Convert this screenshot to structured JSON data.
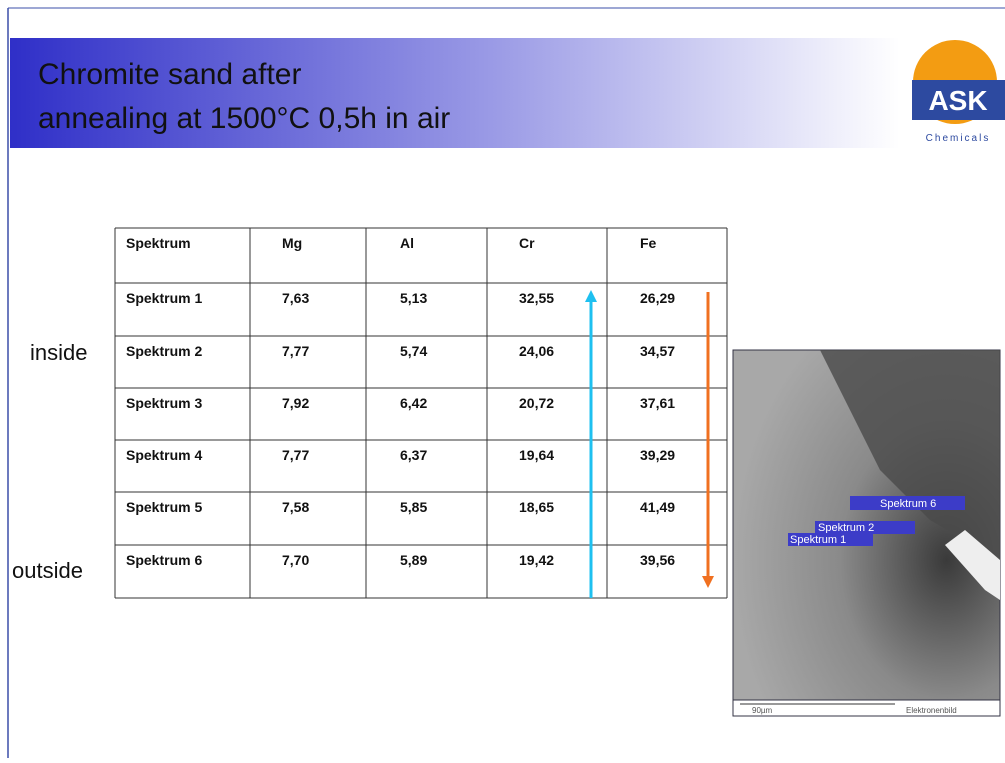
{
  "header": {
    "title": [
      "Chromite sand after",
      "annealing at 1500°C 0,5h in air"
    ],
    "logo": "ASK",
    "logo_sub": "Chemicals"
  },
  "side_labels": {
    "inside": "inside",
    "outside": "outside"
  },
  "table": {
    "columns": [
      "Spektrum",
      "Mg",
      "Al",
      "Cr",
      "Fe"
    ],
    "rows": [
      [
        "Spektrum 1",
        "7,63",
        "5,13",
        "32,55",
        "26,29"
      ],
      [
        "Spektrum 2",
        "7,77",
        "5,74",
        "24,06",
        "34,57"
      ],
      [
        "Spektrum 3",
        "7,92",
        "6,42",
        "20,72",
        "37,61"
      ],
      [
        "Spektrum 4",
        "7,77",
        "6,37",
        "19,64",
        "39,29"
      ],
      [
        "Spektrum 5",
        "7,58",
        "5,85",
        "18,65",
        "41,49"
      ],
      [
        "Spektrum 6",
        "7,70",
        "5,89",
        "19,42",
        "39,56"
      ]
    ]
  },
  "image": {
    "labels": [
      "Spektrum 6",
      "Spektrum 2",
      "Spektrum 1"
    ],
    "scale": "90µm",
    "caption": "Elektronenbild"
  }
}
